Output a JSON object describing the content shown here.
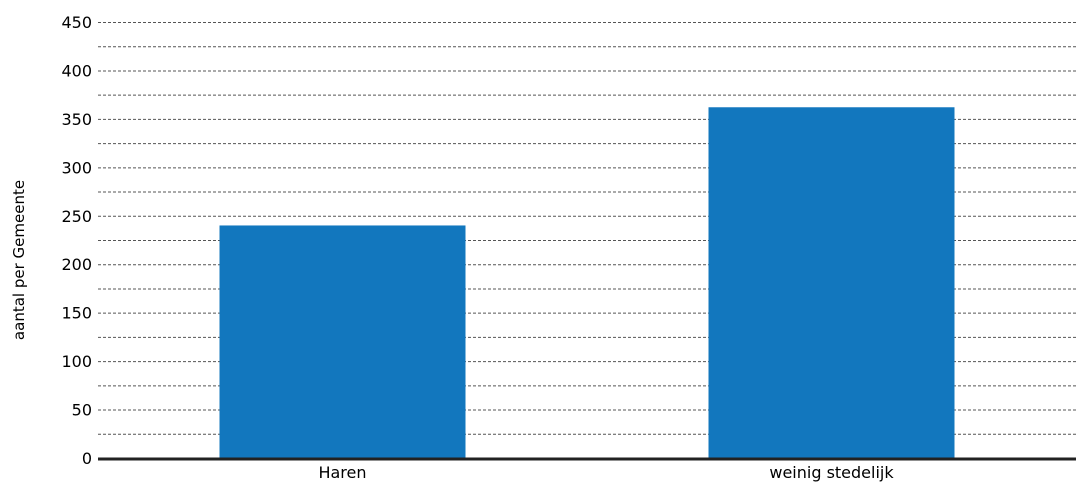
{
  "chart_data": {
    "type": "bar",
    "categories": [
      "Haren",
      "weinig stedelijk"
    ],
    "values": [
      240,
      362
    ],
    "ylabel": "aantal per Gemeente",
    "ylim": [
      0,
      450
    ],
    "yticks": [
      0,
      50,
      100,
      150,
      200,
      250,
      300,
      350,
      400,
      450
    ],
    "ytick_labels": [
      "0",
      "50",
      "100",
      "150",
      "200",
      "250",
      "300",
      "350",
      "400",
      "450"
    ],
    "minor_grid_step": 25,
    "grid": true,
    "grid_style": "dashed",
    "legend": "none",
    "bar_color": "#1277be",
    "axis_color": "#222222",
    "grid_color": "#555555"
  }
}
